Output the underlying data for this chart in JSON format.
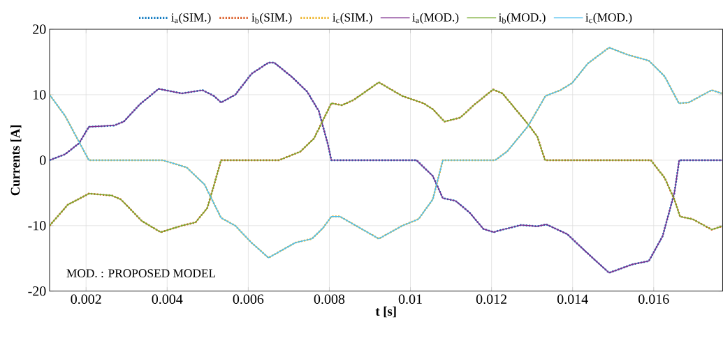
{
  "chart_data": {
    "type": "line",
    "xlabel": "t [s]",
    "ylabel": "Currents [A]",
    "xlim": [
      0.0011,
      0.0177
    ],
    "ylim": [
      -20,
      20
    ],
    "xticks": [
      0.002,
      0.004,
      0.006,
      0.008,
      0.01,
      0.012,
      0.014,
      0.016
    ],
    "yticks": [
      -20,
      -10,
      0,
      10,
      20
    ],
    "grid": true,
    "legend": "top",
    "annotations": [
      "MOD. : PROPOSED MODEL"
    ],
    "series": [
      {
        "name": "i$_{a}$(SIM.)",
        "color": "#0072bd",
        "line_style": "dotted",
        "x": [
          0.0011,
          0.00148,
          0.00183,
          0.00207,
          0.00269,
          0.00293,
          0.00332,
          0.00379,
          0.00436,
          0.00487,
          0.00516,
          0.00533,
          0.00568,
          0.00608,
          0.0065,
          0.00664,
          0.00706,
          0.00745,
          0.00774,
          0.00797,
          0.00805,
          0.01015,
          0.01055,
          0.0108,
          0.01111,
          0.01146,
          0.0118,
          0.01206,
          0.01215,
          0.01273,
          0.01313,
          0.01335,
          0.01387,
          0.01433,
          0.0149,
          0.01548,
          0.01588,
          0.01622,
          0.01651,
          0.01663,
          0.0177
        ],
        "values": [
          0,
          0.9,
          2.6,
          5.1,
          5.3,
          5.9,
          8.5,
          10.9,
          10.2,
          10.7,
          9.8,
          8.8,
          10,
          13.2,
          14.9,
          14.9,
          12.8,
          10.5,
          7.5,
          2.3,
          0,
          0,
          -2.4,
          -5.8,
          -6.2,
          -8,
          -10.5,
          -11,
          -10.8,
          -9.9,
          -10.1,
          -9.8,
          -11.3,
          -14,
          -17.2,
          -15.9,
          -15.4,
          -11.6,
          -5,
          0,
          0
        ]
      },
      {
        "name": "i$_{b}$(SIM.)",
        "color": "#d95319",
        "line_style": "dotted",
        "x": [
          0.0011,
          0.00155,
          0.00207,
          0.00264,
          0.00286,
          0.00338,
          0.00384,
          0.00436,
          0.0047,
          0.00499,
          0.00516,
          0.00533,
          0.00676,
          0.00728,
          0.00762,
          0.00805,
          0.00831,
          0.0086,
          0.00922,
          0.0098,
          0.01032,
          0.01055,
          0.01084,
          0.01123,
          0.01158,
          0.01204,
          0.01227,
          0.0129,
          0.01313,
          0.01332,
          0.01593,
          0.01627,
          0.01651,
          0.01665,
          0.01696,
          0.01743,
          0.01768
        ],
        "values": [
          -10,
          -6.8,
          -5.1,
          -5.4,
          -6,
          -9.3,
          -11,
          -10,
          -9.5,
          -7.3,
          -3.7,
          0,
          0,
          1.3,
          3.3,
          8.7,
          8.4,
          9.2,
          11.9,
          9.8,
          8.7,
          7.8,
          5.9,
          6.5,
          8.5,
          10.8,
          10.2,
          5.5,
          3.6,
          0,
          0,
          -2.7,
          -6,
          -8.6,
          -9,
          -10.6,
          -10.1
        ]
      },
      {
        "name": "i$_{c}$(SIM.)",
        "color": "#edb120",
        "line_style": "dotted",
        "x": [
          0.0011,
          0.00148,
          0.00207,
          0.00389,
          0.00448,
          0.00492,
          0.00533,
          0.00568,
          0.00608,
          0.0065,
          0.00716,
          0.00757,
          0.00785,
          0.00805,
          0.00826,
          0.00922,
          0.0098,
          0.0102,
          0.01055,
          0.0108,
          0.01209,
          0.01238,
          0.0129,
          0.01333,
          0.0137,
          0.01399,
          0.01438,
          0.0149,
          0.01536,
          0.01588,
          0.01627,
          0.01662,
          0.01686,
          0.01743,
          0.01768
        ],
        "values": [
          10,
          6.8,
          0,
          0,
          -1.1,
          -3.7,
          -8.8,
          -10,
          -12.6,
          -14.9,
          -12.6,
          -12,
          -10.3,
          -8.6,
          -8.6,
          -12,
          -10,
          -9,
          -6,
          0,
          0,
          1.3,
          5.2,
          9.8,
          10.7,
          11.8,
          14.8,
          17.2,
          16.1,
          15.2,
          12.8,
          8.7,
          8.8,
          10.7,
          10.2
        ]
      },
      {
        "name": "i$_{a}$(MOD.)",
        "color": "#7e2f8e",
        "line_style": "solid",
        "x": [
          0.0011,
          0.00148,
          0.00183,
          0.00207,
          0.00269,
          0.00293,
          0.00332,
          0.00379,
          0.00436,
          0.00487,
          0.00516,
          0.00533,
          0.00568,
          0.00608,
          0.0065,
          0.00664,
          0.00706,
          0.00745,
          0.00774,
          0.00797,
          0.00805,
          0.01015,
          0.01055,
          0.0108,
          0.01111,
          0.01146,
          0.0118,
          0.01206,
          0.01215,
          0.01273,
          0.01313,
          0.01335,
          0.01387,
          0.01433,
          0.0149,
          0.01548,
          0.01588,
          0.01622,
          0.01651,
          0.01663,
          0.0177
        ],
        "values": [
          0,
          0.9,
          2.6,
          5.1,
          5.3,
          5.9,
          8.5,
          10.9,
          10.2,
          10.7,
          9.8,
          8.8,
          10,
          13.2,
          14.9,
          14.9,
          12.8,
          10.5,
          7.5,
          2.3,
          0,
          0,
          -2.4,
          -5.8,
          -6.2,
          -8,
          -10.5,
          -11,
          -10.8,
          -9.9,
          -10.1,
          -9.8,
          -11.3,
          -14,
          -17.2,
          -15.9,
          -15.4,
          -11.6,
          -5,
          0,
          0
        ]
      },
      {
        "name": "i$_{b}$(MOD.)",
        "color": "#77ac30",
        "line_style": "solid",
        "x": [
          0.0011,
          0.00155,
          0.00207,
          0.00264,
          0.00286,
          0.00338,
          0.00384,
          0.00436,
          0.0047,
          0.00499,
          0.00516,
          0.00533,
          0.00676,
          0.00728,
          0.00762,
          0.00805,
          0.00831,
          0.0086,
          0.00922,
          0.0098,
          0.01032,
          0.01055,
          0.01084,
          0.01123,
          0.01158,
          0.01204,
          0.01227,
          0.0129,
          0.01313,
          0.01332,
          0.01593,
          0.01627,
          0.01651,
          0.01665,
          0.01696,
          0.01743,
          0.01768
        ],
        "values": [
          -10,
          -6.8,
          -5.1,
          -5.4,
          -6,
          -9.3,
          -11,
          -10,
          -9.5,
          -7.3,
          -3.7,
          0,
          0,
          1.3,
          3.3,
          8.7,
          8.4,
          9.2,
          11.9,
          9.8,
          8.7,
          7.8,
          5.9,
          6.5,
          8.5,
          10.8,
          10.2,
          5.5,
          3.6,
          0,
          0,
          -2.7,
          -6,
          -8.6,
          -9,
          -10.6,
          -10.1
        ]
      },
      {
        "name": "i$_{c}$(MOD.)",
        "color": "#4dbeee",
        "line_style": "solid",
        "x": [
          0.0011,
          0.00148,
          0.00207,
          0.00389,
          0.00448,
          0.00492,
          0.00533,
          0.00568,
          0.00608,
          0.0065,
          0.00716,
          0.00757,
          0.00785,
          0.00805,
          0.00826,
          0.00922,
          0.0098,
          0.0102,
          0.01055,
          0.0108,
          0.01209,
          0.01238,
          0.0129,
          0.01333,
          0.0137,
          0.01399,
          0.01438,
          0.0149,
          0.01536,
          0.01588,
          0.01627,
          0.01662,
          0.01686,
          0.01743,
          0.01768
        ],
        "values": [
          10,
          6.8,
          0,
          0,
          -1.1,
          -3.7,
          -8.8,
          -10,
          -12.6,
          -14.9,
          -12.6,
          -12,
          -10.3,
          -8.6,
          -8.6,
          -12,
          -10,
          -9,
          -6,
          0,
          0,
          1.3,
          5.2,
          9.8,
          10.7,
          11.8,
          14.8,
          17.2,
          16.1,
          15.2,
          12.8,
          8.7,
          8.8,
          10.7,
          10.2
        ]
      }
    ]
  }
}
